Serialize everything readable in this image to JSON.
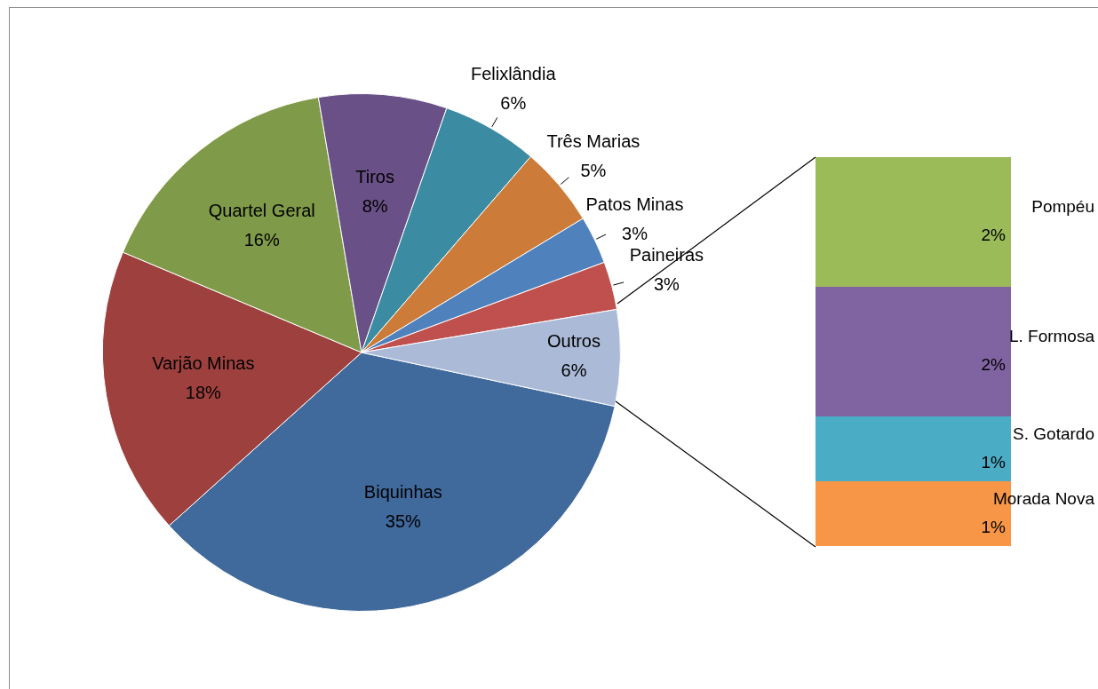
{
  "chart_data": [
    {
      "type": "pie",
      "categories": [
        "Biquinhas",
        "Varjão Minas",
        "Quartel Geral",
        "Tiros",
        "Felixlândia",
        "Três Marias",
        "Patos Minas",
        "Paineiras",
        "Outros"
      ],
      "values": [
        35,
        18,
        16,
        8,
        6,
        5,
        3,
        3,
        6
      ],
      "colors": [
        "#40699c",
        "#9e413e",
        "#7f9a48",
        "#695086",
        "#3b8ca3",
        "#cc7b38",
        "#4f81bd",
        "#c0504d",
        "#aabad7"
      ],
      "value_labels": [
        "35%",
        "18%",
        "16%",
        "8%",
        "6%",
        "5%",
        "3%",
        "3%",
        "6%"
      ]
    },
    {
      "type": "bar",
      "stacked": true,
      "categories": [
        null
      ],
      "tick_labels": false,
      "series": [
        {
          "name": "Morada Nova",
          "color": "#f79646",
          "values": [
            1
          ],
          "value_labels": [
            "1%"
          ]
        },
        {
          "name": "S. Gotardo",
          "color": "#4bacc6",
          "values": [
            1
          ],
          "value_labels": [
            "1%"
          ]
        },
        {
          "name": "L. Formosa",
          "color": "#8064a2",
          "values": [
            2
          ],
          "value_labels": [
            "2%"
          ]
        },
        {
          "name": "Pompéu",
          "color": "#9bbb59",
          "values": [
            2
          ],
          "value_labels": [
            "2%"
          ]
        }
      ]
    }
  ]
}
